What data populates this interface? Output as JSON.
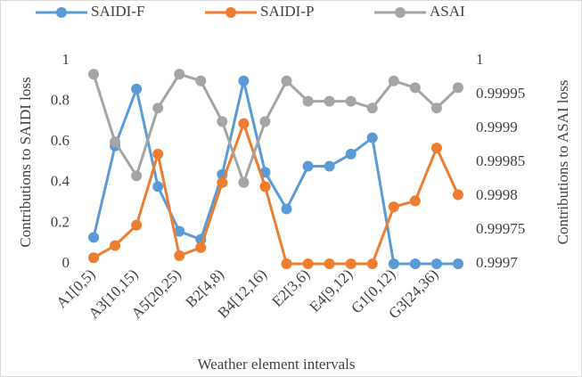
{
  "chart_data": {
    "type": "line",
    "categories": [
      "A1[0,5)",
      null,
      "A3[10,15)",
      null,
      "A5[20,25)",
      null,
      "B2[4,8)",
      null,
      "B4[12,16)",
      null,
      "E2[3,6)",
      null,
      "E4[9,12)",
      null,
      "G1[0,12)",
      null,
      "G3[24,36)",
      null
    ],
    "series": [
      {
        "name": "SAIDI-F",
        "color": "#5b9bd5",
        "values": [
          0.13,
          0.58,
          0.86,
          0.38,
          0.16,
          0.12,
          0.44,
          0.9,
          0.45,
          0.27,
          0.48,
          0.48,
          0.54,
          0.62,
          0,
          0,
          0,
          0
        ]
      },
      {
        "name": "SAIDI-P",
        "color": "#ed7d31",
        "values": [
          0.03,
          0.09,
          0.19,
          0.54,
          0.04,
          0.08,
          0.4,
          0.69,
          0.38,
          0,
          0,
          0,
          0,
          0,
          0.28,
          0.31,
          0.57,
          0.34
        ]
      },
      {
        "name": "ASAI",
        "color": "#a5a5a5",
        "axis": "y2",
        "values": [
          0.99998,
          0.99988,
          0.99983,
          0.99993,
          0.99998,
          0.99997,
          0.99991,
          0.99982,
          0.99991,
          0.99997,
          0.99994,
          0.99994,
          0.99994,
          0.99993,
          0.99997,
          0.99996,
          0.99993,
          0.99996
        ]
      }
    ],
    "ylim": [
      0,
      1
    ],
    "yticks": [
      0,
      0.2,
      0.4,
      0.6,
      0.8,
      1
    ],
    "y2lim": [
      0.9997,
      1
    ],
    "y2ticks": [
      0.9997,
      0.99975,
      0.9998,
      0.99985,
      0.9999,
      0.99995,
      1
    ],
    "ylabel": "Contributions to SAIDI loss",
    "y2label": "Contributions to ASAI loss",
    "xlabel": "Weather element intervals",
    "legend": "top"
  }
}
